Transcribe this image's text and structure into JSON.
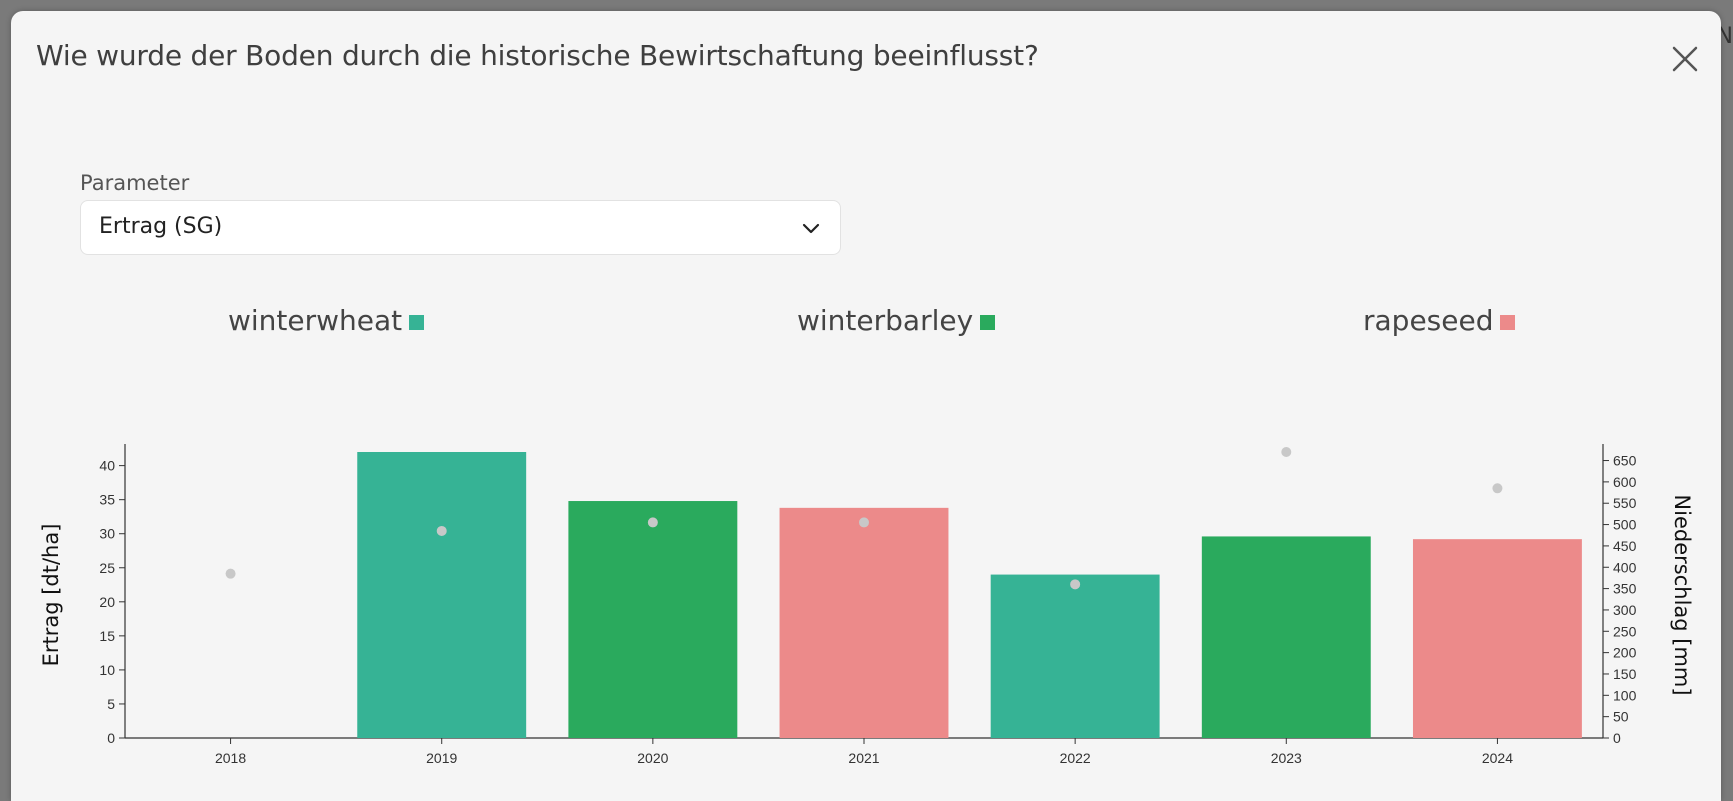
{
  "backdrop": {
    "edge_text": "EN"
  },
  "modal": {
    "title": "Wie wurde der Boden durch die historische Bewirtschaftung beeinflusst?",
    "close_icon": "close-icon"
  },
  "parameter": {
    "label": "Parameter",
    "selected": "Ertrag (SG)",
    "dropdown_icon": "chevron-down-icon"
  },
  "legend": [
    {
      "label": "winterwheat",
      "color": "#36b395"
    },
    {
      "label": "winterbarley",
      "color": "#2aaa5d"
    },
    {
      "label": "rapeseed",
      "color": "#ec8a8a"
    }
  ],
  "chart_data": {
    "type": "bar",
    "categories": [
      "2018",
      "2019",
      "2020",
      "2021",
      "2022",
      "2023",
      "2024"
    ],
    "values": [
      null,
      42,
      34.8,
      33.8,
      24,
      29.6,
      29.2
    ],
    "crops": [
      null,
      "winterwheat",
      "winterbarley",
      "rapeseed",
      "winterwheat",
      "winterbarley",
      "rapeseed"
    ],
    "secondary_series": {
      "type": "scatter",
      "values": [
        385,
        485,
        505,
        505,
        360,
        670,
        585
      ],
      "color": "#c8c8c8"
    },
    "ylabel": "Ertrag [dt/ha]",
    "y2label": "Niederschlag [mm]",
    "ylim": [
      0,
      42
    ],
    "y2lim": [
      0,
      670
    ],
    "yticks": [
      0,
      5,
      10,
      15,
      20,
      25,
      30,
      35,
      40
    ],
    "y2ticks": [
      0,
      50,
      100,
      150,
      200,
      250,
      300,
      350,
      400,
      450,
      500,
      550,
      600,
      650
    ],
    "grid": false,
    "legend_position": "top"
  }
}
